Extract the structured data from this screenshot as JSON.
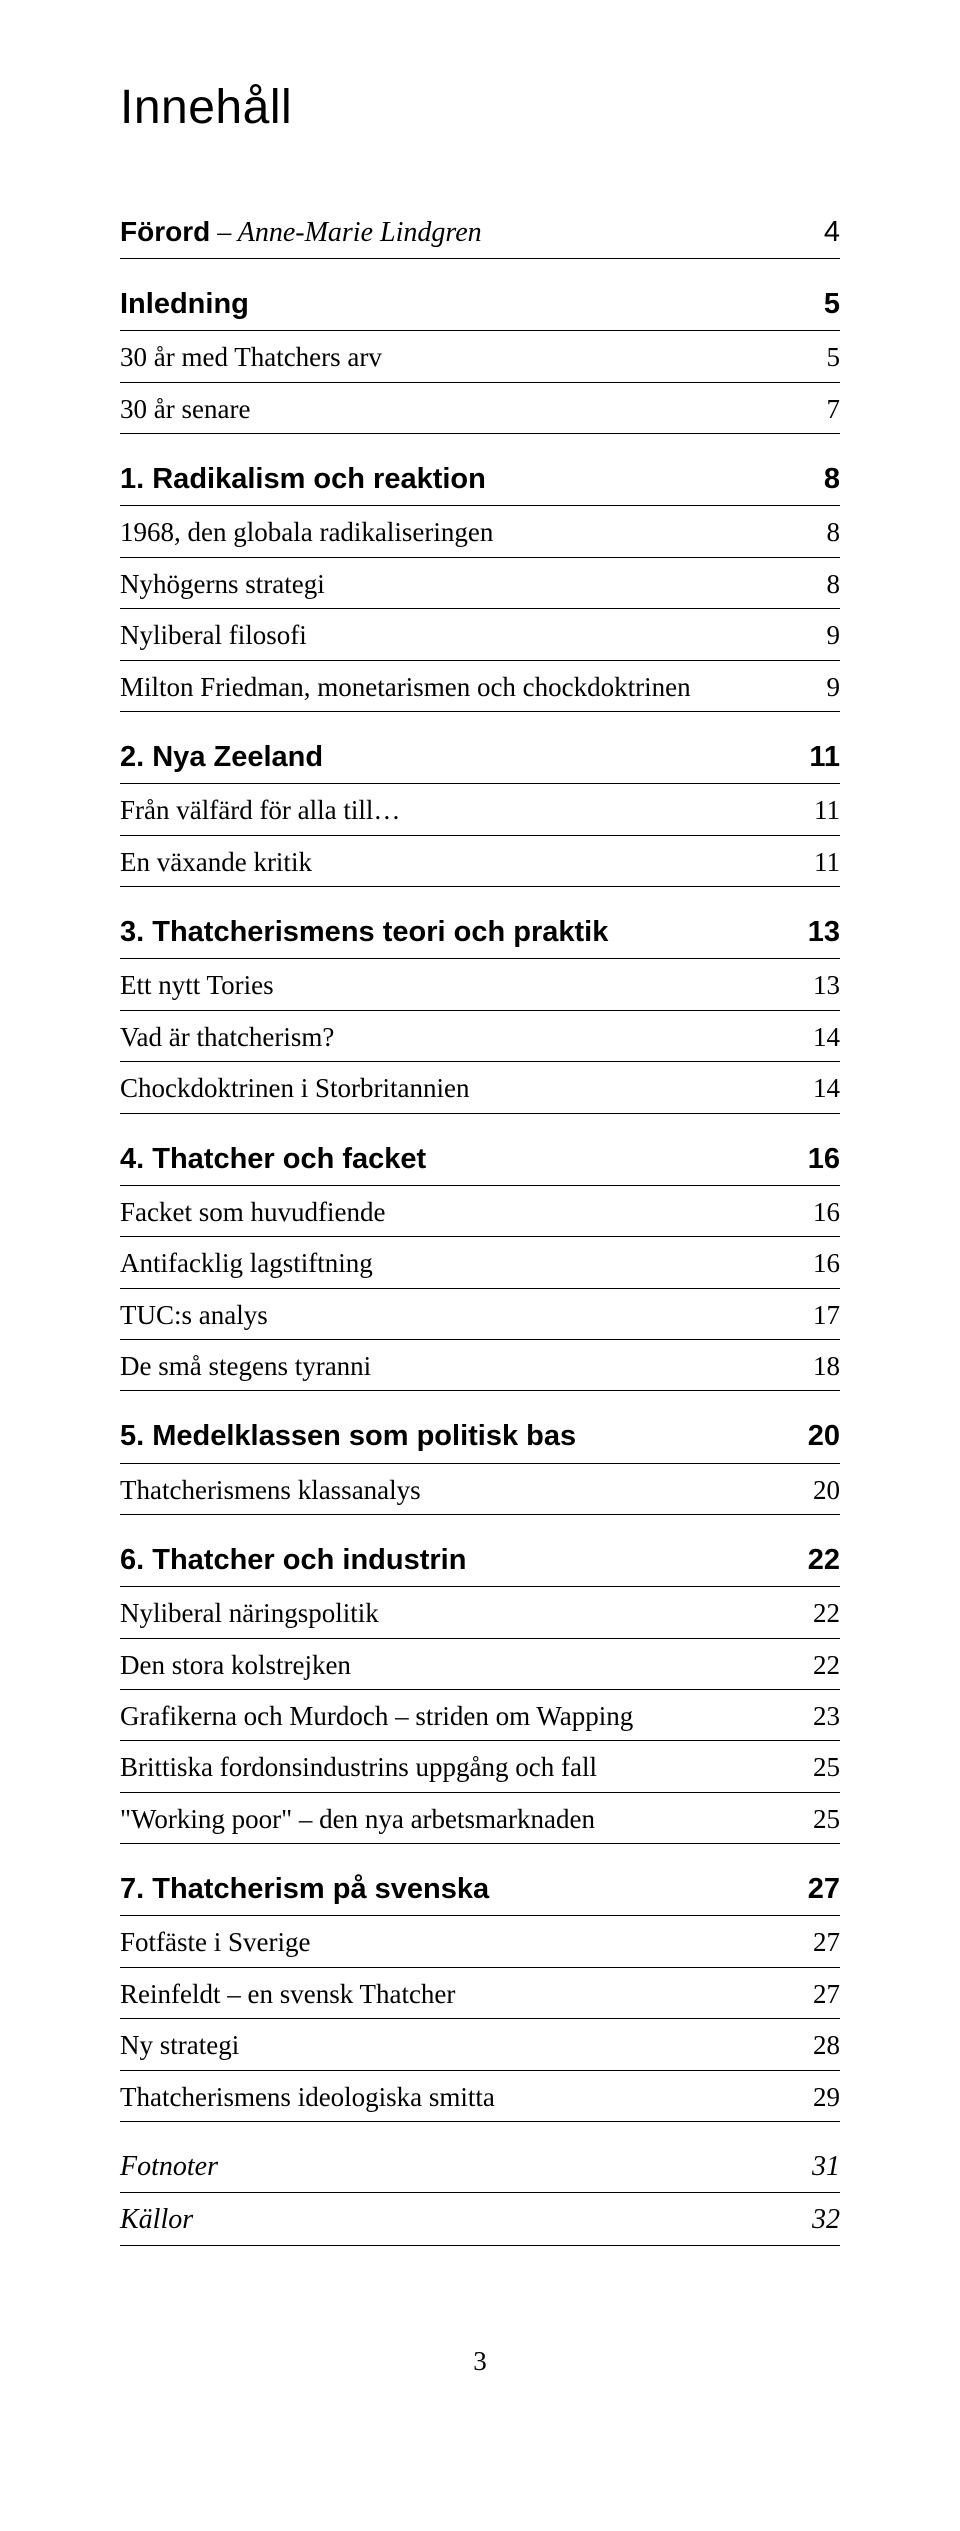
{
  "title": "Innehåll",
  "entries": [
    {
      "label_prefix": "Förord",
      "label_italic": " – Anne-Marie Lindgren",
      "page": "4",
      "style": "bold-italic",
      "gap": false
    },
    {
      "label": "Inledning",
      "page": "5",
      "style": "bold",
      "gap": true
    },
    {
      "label": "30 år med Thatchers arv",
      "page": "5",
      "style": "sub",
      "gap": false
    },
    {
      "label": "30 år senare",
      "page": "7",
      "style": "sub",
      "gap": false
    },
    {
      "label": "1. Radikalism och reaktion",
      "page": "8",
      "style": "bold",
      "gap": true
    },
    {
      "label": "1968, den globala radikaliseringen",
      "page": "8",
      "style": "sub",
      "gap": false
    },
    {
      "label": "Nyhögerns strategi",
      "page": "8",
      "style": "sub",
      "gap": false
    },
    {
      "label": "Nyliberal filosofi",
      "page": "9",
      "style": "sub",
      "gap": false
    },
    {
      "label": "Milton Friedman, monetarismen och chockdoktrinen",
      "page": "9",
      "style": "sub",
      "gap": false
    },
    {
      "label": "2. Nya Zeeland",
      "page": "11",
      "style": "bold",
      "gap": true
    },
    {
      "label": "Från välfärd för alla till…",
      "page": "11",
      "style": "sub",
      "gap": false
    },
    {
      "label": "En växande kritik",
      "page": "11",
      "style": "sub",
      "gap": false
    },
    {
      "label": "3. Thatcherismens teori och praktik",
      "page": "13",
      "style": "bold",
      "gap": true
    },
    {
      "label": "Ett nytt Tories",
      "page": "13",
      "style": "sub",
      "gap": false
    },
    {
      "label": "Vad är thatcherism?",
      "page": "14",
      "style": "sub",
      "gap": false
    },
    {
      "label": "Chockdoktrinen i Storbritannien",
      "page": "14",
      "style": "sub",
      "gap": false
    },
    {
      "label": "4. Thatcher och facket",
      "page": "16",
      "style": "bold",
      "gap": true
    },
    {
      "label": "Facket som huvudfiende",
      "page": "16",
      "style": "sub",
      "gap": false
    },
    {
      "label": "Antifacklig lagstiftning",
      "page": "16",
      "style": "sub",
      "gap": false
    },
    {
      "label": "TUC:s analys",
      "page": "17",
      "style": "sub",
      "gap": false
    },
    {
      "label": "De små stegens tyranni",
      "page": "18",
      "style": "sub",
      "gap": false
    },
    {
      "label": "5. Medelklassen som politisk bas",
      "page": "20",
      "style": "bold",
      "gap": true
    },
    {
      "label": "Thatcherismens klassanalys",
      "page": "20",
      "style": "sub",
      "gap": false
    },
    {
      "label": "6. Thatcher och industrin",
      "page": "22",
      "style": "bold",
      "gap": true
    },
    {
      "label": "Nyliberal näringspolitik",
      "page": "22",
      "style": "sub",
      "gap": false
    },
    {
      "label": "Den stora kolstrejken",
      "page": "22",
      "style": "sub",
      "gap": false
    },
    {
      "label": "Grafikerna och Murdoch – striden om Wapping",
      "page": "23",
      "style": "sub",
      "gap": false
    },
    {
      "label": "Brittiska fordonsindustrins uppgång och fall",
      "page": "25",
      "style": "sub",
      "gap": false
    },
    {
      "label": "\"Working poor\" – den nya arbetsmarknaden",
      "page": "25",
      "style": "sub",
      "gap": false
    },
    {
      "label": "7. Thatcherism på svenska",
      "page": "27",
      "style": "bold",
      "gap": true
    },
    {
      "label": "Fotfäste i Sverige",
      "page": "27",
      "style": "sub",
      "gap": false
    },
    {
      "label": "Reinfeldt – en svensk Thatcher",
      "page": "27",
      "style": "sub",
      "gap": false
    },
    {
      "label": "Ny strategi",
      "page": "28",
      "style": "sub",
      "gap": false
    },
    {
      "label": "Thatcherismens ideologiska smitta",
      "page": "29",
      "style": "sub",
      "gap": false
    },
    {
      "label": "Fotnoter",
      "page": "31",
      "style": "italic",
      "gap": true
    },
    {
      "label": "Källor",
      "page": "32",
      "style": "italic",
      "gap": false
    }
  ],
  "footer_page": "3",
  "colors": {
    "text": "#000000",
    "background": "#ffffff",
    "rule": "#000000"
  },
  "typography": {
    "title_fontsize": 48,
    "bold_fontsize": 29,
    "sub_fontsize": 27,
    "italic_fontsize": 28,
    "footer_fontsize": 27
  }
}
